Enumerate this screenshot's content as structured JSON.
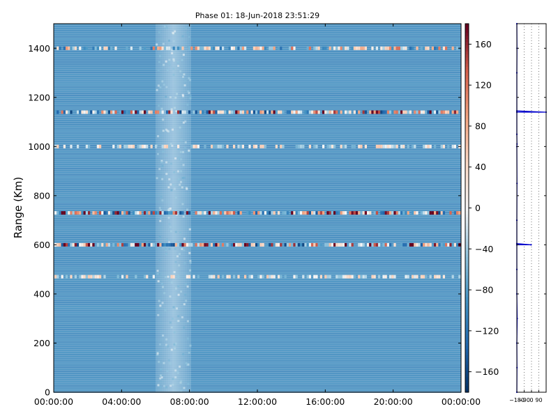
{
  "chart_data": [
    {
      "type": "heatmap",
      "title": "Phase 01: 18-Jun-2018 23:51:29",
      "xlabel": "",
      "ylabel": "Range (Km)",
      "xlim": [
        "00:00:00",
        "24:00:00"
      ],
      "ylim": [
        0,
        1500
      ],
      "x_ticks": [
        "00:00:00",
        "04:00:00",
        "08:00:00",
        "12:00:00",
        "16:00:00",
        "20:00:00",
        "00:00:00"
      ],
      "y_ticks": [
        0,
        200,
        400,
        600,
        800,
        1000,
        1200,
        1400
      ],
      "colormap": "RdBu_r",
      "colors": {
        "low": "#053061",
        "mid": "#f7f7f7",
        "high": "#67001f",
        "background": "#6fa6cc"
      },
      "grid": false,
      "base_value": -100,
      "quieter_time_window": [
        "06:00:00",
        "08:00:00"
      ],
      "noisy_rows": [
        {
          "range": 1400,
          "level": "moderate"
        },
        {
          "range": 1140,
          "level": "strong"
        },
        {
          "range": 730,
          "level": "strong"
        },
        {
          "range": 600,
          "level": "strong"
        },
        {
          "range": 1000,
          "level": "weak"
        },
        {
          "range": 470,
          "level": "weak"
        }
      ],
      "colorbar": {
        "range": [
          -180,
          180
        ],
        "ticks": [
          160,
          120,
          80,
          40,
          0,
          -40,
          -80,
          -120,
          -160
        ]
      }
    },
    {
      "type": "line",
      "title": "",
      "xlabel": "",
      "ylabel": "",
      "xlim": [
        -180,
        180
      ],
      "ylim": [
        0,
        1500
      ],
      "x_ticks": [
        "−180",
        "−90",
        "0",
        "90"
      ],
      "grid_x": [
        -90,
        0,
        90
      ],
      "series": [
        {
          "color": "#0000cc",
          "points": [
            [
              -180,
              0
            ],
            [
              -178,
              100
            ],
            [
              -180,
              200
            ],
            [
              -176,
              300
            ],
            [
              -180,
              400
            ],
            [
              -180,
              500
            ],
            [
              -180,
              600
            ],
            [
              -5,
              600
            ],
            [
              -180,
              605
            ],
            [
              -180,
              700
            ],
            [
              -178,
              850
            ],
            [
              -180,
              1000
            ],
            [
              -178,
              1010
            ],
            [
              -180,
              1050
            ],
            [
              -180,
              1140
            ],
            [
              180,
              1140
            ],
            [
              -180,
              1145
            ],
            [
              -180,
              1300
            ],
            [
              -178,
              1400
            ],
            [
              -180,
              1500
            ]
          ]
        }
      ]
    }
  ]
}
